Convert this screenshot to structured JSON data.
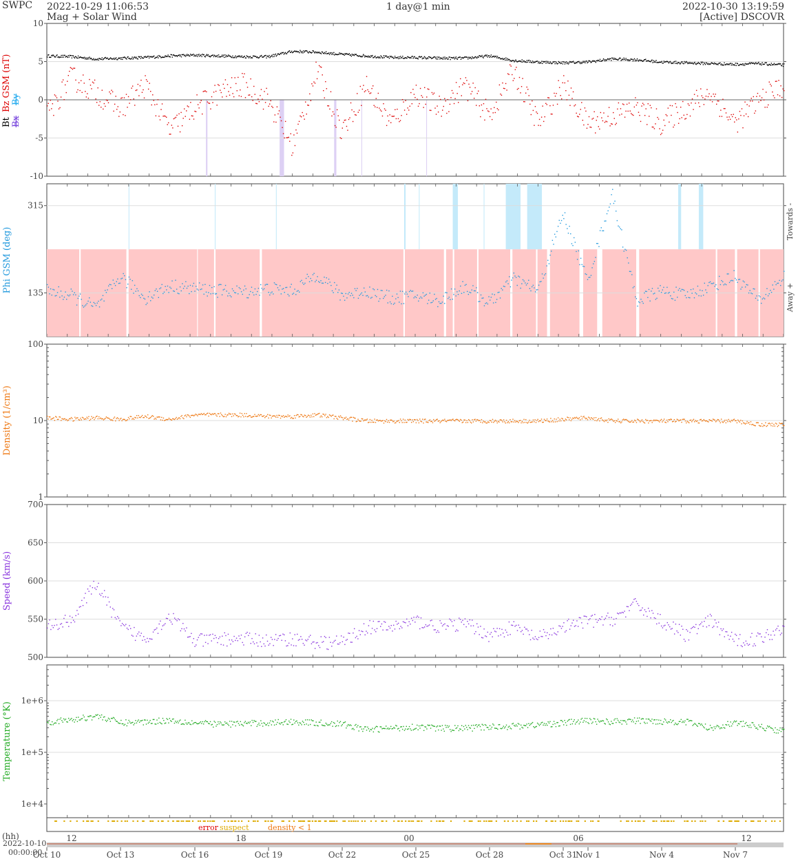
{
  "header": {
    "org": "SWPC",
    "start_time": "2022-10-29 11:06:53",
    "subtitle": "Mag + Solar Wind",
    "span": "1 day@1 min",
    "end_time": "2022-10-30 13:19:59",
    "source": "[Active] DSCOVR"
  },
  "colors": {
    "bt": "#000000",
    "bz": "#dd0000",
    "bx": "#7744dd",
    "by": "#22aaee",
    "phi": "#2299dd",
    "away_fill": "#ffc8c8",
    "towards_fill": "#c4eafa",
    "density": "#ee7711",
    "speed": "#8833dd",
    "temperature": "#22aa22",
    "suspect": "#ddaa00",
    "error": "#dd0000",
    "density_lt1": "#ee7711"
  },
  "legend": {
    "error": "error",
    "suspect": "suspect",
    "density_lt1": "density < 1"
  },
  "time_axis": {
    "unit_label": "(hh)",
    "origin_date": "2022-10-10",
    "origin_time": "00:00:00",
    "hour_ticks": [
      "12",
      "18",
      "00",
      "06",
      "12"
    ],
    "date_ticks": [
      "Oct 10",
      "Oct 13",
      "Oct 16",
      "Oct 19",
      "Oct 22",
      "Oct 25",
      "Oct 28",
      "Oct 31",
      "Nov 1",
      "Nov 4",
      "Nov 7"
    ]
  },
  "chart_data": [
    {
      "type": "scatter",
      "ylabel_parts": [
        "Bt",
        "Bz GSM (nT)",
        "Bx",
        "By"
      ],
      "ylim": [
        -10,
        10
      ],
      "yticks": [
        "-10",
        "-5",
        "0",
        "5",
        "10"
      ],
      "grid": true,
      "series": [
        {
          "name": "Bt",
          "x": [
            0,
            1,
            2,
            3,
            4,
            5,
            6,
            7,
            8,
            9,
            10,
            11,
            12,
            13,
            14,
            15,
            16,
            17,
            18,
            19,
            20,
            21,
            22,
            23,
            24,
            25,
            26,
            27,
            28,
            29,
            30
          ],
          "values": [
            5.8,
            5.7,
            5.4,
            5.5,
            5.6,
            5.8,
            5.9,
            5.8,
            5.7,
            5.7,
            6.4,
            6.3,
            6.0,
            5.8,
            5.6,
            5.6,
            5.5,
            5.5,
            5.8,
            5.2,
            5.0,
            4.9,
            5.0,
            5.4,
            5.3,
            5.0,
            4.9,
            4.8,
            4.7,
            4.8,
            4.6
          ]
        },
        {
          "name": "Bz GSM",
          "x": [
            0,
            1,
            2,
            3,
            4,
            5,
            6,
            7,
            8,
            9,
            10,
            11,
            12,
            13,
            14,
            15,
            16,
            17,
            18,
            19,
            20,
            21,
            22,
            23,
            24,
            25,
            26,
            27,
            28,
            29,
            30
          ],
          "values": [
            -2,
            3,
            1,
            -1,
            2,
            -4,
            -1,
            1,
            2,
            0,
            -6,
            4,
            -4,
            2,
            -3,
            1,
            -1,
            2,
            -2,
            4,
            -3,
            2,
            -3,
            -2,
            -1,
            -3,
            -1,
            1,
            -3,
            0,
            2
          ]
        }
      ]
    },
    {
      "type": "scatter",
      "ylabel": "Phi GSM (deg)",
      "yticks": [
        "135",
        "315"
      ],
      "right_labels": [
        "Towards -",
        "Away +"
      ],
      "grid": true,
      "series": [
        {
          "name": "Phi GSM",
          "x": [
            0,
            1,
            2,
            3,
            4,
            5,
            6,
            7,
            8,
            9,
            10,
            11,
            12,
            13,
            14,
            15,
            16,
            17,
            18,
            19,
            20,
            21,
            22,
            23,
            24,
            25,
            26,
            27,
            28,
            29,
            30
          ],
          "values": [
            140,
            130,
            105,
            170,
            125,
            150,
            145,
            140,
            138,
            145,
            140,
            175,
            130,
            140,
            125,
            130,
            120,
            150,
            115,
            165,
            140,
            300,
            160,
            340,
            120,
            140,
            130,
            150,
            170,
            120,
            170
          ]
        }
      ]
    },
    {
      "type": "scatter",
      "ylabel": "Density (1/cm³)",
      "yscale": "log",
      "ylim": [
        1,
        100
      ],
      "yticks": [
        "1",
        "10",
        "100"
      ],
      "grid": true,
      "series": [
        {
          "name": "Density",
          "x": [
            0,
            1,
            2,
            3,
            4,
            5,
            6,
            7,
            8,
            9,
            10,
            11,
            12,
            13,
            14,
            15,
            16,
            17,
            18,
            19,
            20,
            21,
            22,
            23,
            24,
            25,
            26,
            27,
            28,
            29,
            30
          ],
          "values": [
            11,
            10.5,
            11,
            10.5,
            11.5,
            10.5,
            12,
            12,
            12,
            11.5,
            11.5,
            12,
            11,
            10,
            10,
            10,
            10,
            10,
            10,
            10,
            10,
            10.5,
            11,
            10,
            10,
            10,
            10,
            10,
            10,
            9,
            9
          ]
        }
      ]
    },
    {
      "type": "scatter",
      "ylabel": "Speed (km/s)",
      "ylim": [
        500,
        700
      ],
      "yticks": [
        "500",
        "550",
        "600",
        "650",
        "700"
      ],
      "grid": true,
      "series": [
        {
          "name": "Speed",
          "x": [
            0,
            1,
            2,
            3,
            4,
            5,
            6,
            7,
            8,
            9,
            10,
            11,
            12,
            13,
            14,
            15,
            16,
            17,
            18,
            19,
            20,
            21,
            22,
            23,
            24,
            25,
            26,
            27,
            28,
            29,
            30
          ],
          "values": [
            540,
            550,
            598,
            540,
            525,
            555,
            522,
            524,
            525,
            522,
            525,
            520,
            520,
            540,
            540,
            548,
            540,
            545,
            530,
            540,
            525,
            540,
            548,
            550,
            570,
            548,
            530,
            548,
            522,
            525,
            540
          ]
        }
      ]
    },
    {
      "type": "scatter",
      "ylabel": "Temperature (°K)",
      "yscale": "log",
      "yticks": [
        "1e+4",
        "1e+5",
        "1e+6"
      ],
      "grid": true,
      "series": [
        {
          "name": "Temperature",
          "x": [
            0,
            1,
            2,
            3,
            4,
            5,
            6,
            7,
            8,
            9,
            10,
            11,
            12,
            13,
            14,
            15,
            16,
            17,
            18,
            19,
            20,
            21,
            22,
            23,
            24,
            25,
            26,
            27,
            28,
            29,
            30
          ],
          "values": [
            400000,
            430000,
            520000,
            380000,
            400000,
            430000,
            380000,
            360000,
            370000,
            380000,
            400000,
            380000,
            360000,
            280000,
            300000,
            320000,
            300000,
            300000,
            320000,
            330000,
            350000,
            380000,
            420000,
            400000,
            420000,
            410000,
            400000,
            300000,
            380000,
            320000,
            260000
          ]
        }
      ]
    }
  ]
}
